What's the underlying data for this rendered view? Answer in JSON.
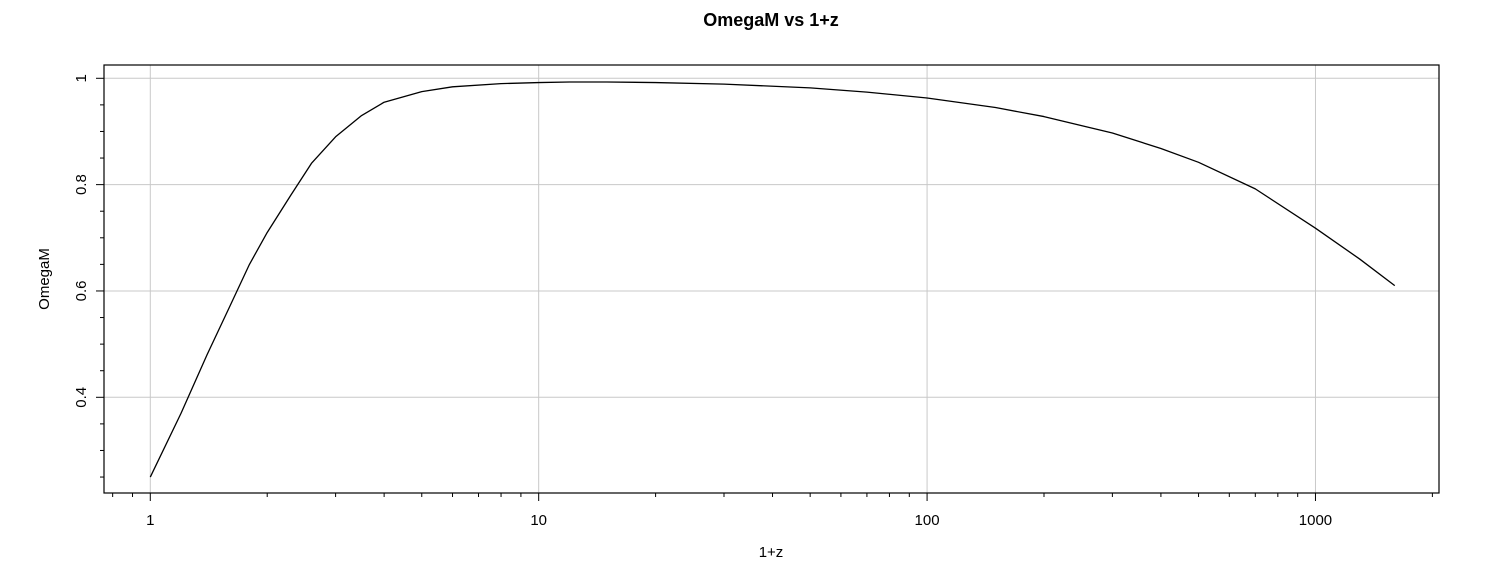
{
  "chart_data": {
    "type": "line",
    "title": "OmegaM vs 1+z",
    "xlabel": "1+z",
    "ylabel": "OmegaM",
    "xscale": "log",
    "xlim": [
      0.76,
      2080
    ],
    "ylim": [
      0.22,
      1.025
    ],
    "grid": true,
    "x_ticks": [
      1,
      10,
      100,
      1000
    ],
    "x_tick_labels": [
      "1",
      "10",
      "100",
      "1000"
    ],
    "y_ticks": [
      0.4,
      0.6,
      0.8,
      1.0
    ],
    "y_tick_labels": [
      "0.4",
      "0.6",
      "0.8",
      "1"
    ],
    "series": [
      {
        "color": "#000000",
        "x": [
          1,
          1.2,
          1.4,
          1.6,
          1.8,
          2,
          2.3,
          2.6,
          3,
          3.5,
          4,
          5,
          6,
          8,
          10,
          12,
          15,
          20,
          30,
          50,
          70,
          100,
          150,
          200,
          300,
          400,
          500,
          700,
          1000,
          1300,
          1600
        ],
        "y": [
          0.25,
          0.37,
          0.48,
          0.57,
          0.65,
          0.71,
          0.78,
          0.84,
          0.89,
          0.93,
          0.955,
          0.975,
          0.984,
          0.99,
          0.992,
          0.993,
          0.993,
          0.992,
          0.989,
          0.982,
          0.974,
          0.963,
          0.945,
          0.928,
          0.897,
          0.868,
          0.842,
          0.792,
          0.718,
          0.66,
          0.61
        ]
      }
    ]
  }
}
